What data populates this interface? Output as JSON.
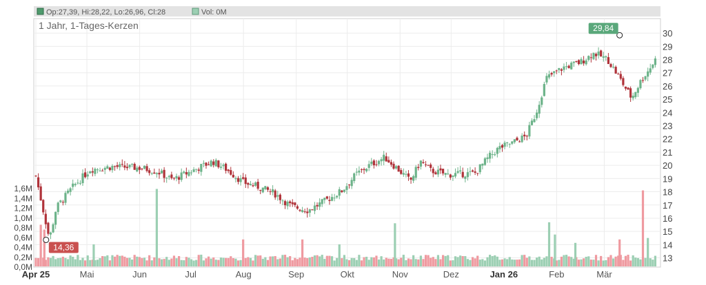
{
  "header": {
    "ohlc_text": "Op:27,39, Hi:28,22, Lo:26,96, Cl:28",
    "vol_text": "Vol: 0M"
  },
  "chart_data": {
    "type": "candlestick",
    "title": "1 Jahr, 1-Tages-Kerzen",
    "price_axis": {
      "min": 12.3,
      "max": 31.1,
      "ticks": [
        13,
        14,
        15,
        16,
        17,
        18,
        19,
        20,
        21,
        22,
        23,
        24,
        25,
        26,
        27,
        28,
        29,
        30
      ]
    },
    "volume_axis": {
      "min": 0,
      "max": 1.6,
      "ticks": [
        0,
        0.2,
        0.4,
        0.6,
        0.8,
        1.0,
        1.2,
        1.4,
        1.6
      ],
      "tick_labels": [
        "0,0M",
        "0,2M",
        "0,4M",
        "0,6M",
        "0,8M",
        "1,0M",
        "1,2M",
        "1,4M",
        "1,6M"
      ]
    },
    "x_labels": [
      {
        "label": "Apr 25",
        "bold": true,
        "day": 0
      },
      {
        "label": "Mai",
        "bold": false,
        "day": 30
      },
      {
        "label": "Jun",
        "bold": false,
        "day": 61
      },
      {
        "label": "Jul",
        "bold": false,
        "day": 91
      },
      {
        "label": "Aug",
        "bold": false,
        "day": 122
      },
      {
        "label": "Sep",
        "bold": false,
        "day": 153
      },
      {
        "label": "Okt",
        "bold": false,
        "day": 183
      },
      {
        "label": "Nov",
        "bold": false,
        "day": 214
      },
      {
        "label": "Dez",
        "bold": false,
        "day": 244
      },
      {
        "label": "Jan 26",
        "bold": true,
        "day": 275
      },
      {
        "label": "Feb",
        "bold": false,
        "day": 306
      },
      {
        "label": "Mär",
        "bold": false,
        "day": 334
      }
    ],
    "total_days": 365,
    "price_path": [
      [
        0,
        19.2
      ],
      [
        8,
        14.4
      ],
      [
        12,
        16.8
      ],
      [
        22,
        18.4
      ],
      [
        32,
        19.7
      ],
      [
        45,
        19.9
      ],
      [
        62,
        19.8
      ],
      [
        72,
        19.5
      ],
      [
        80,
        18.9
      ],
      [
        92,
        19.6
      ],
      [
        104,
        20.3
      ],
      [
        112,
        19.7
      ],
      [
        122,
        18.7
      ],
      [
        130,
        18.4
      ],
      [
        140,
        17.9
      ],
      [
        150,
        16.9
      ],
      [
        160,
        16.6
      ],
      [
        170,
        17.3
      ],
      [
        180,
        18.1
      ],
      [
        188,
        19.3
      ],
      [
        196,
        20.0
      ],
      [
        205,
        20.6
      ],
      [
        212,
        19.8
      ],
      [
        220,
        18.8
      ],
      [
        226,
        20.3
      ],
      [
        232,
        19.6
      ],
      [
        242,
        19.3
      ],
      [
        258,
        19.4
      ],
      [
        266,
        20.6
      ],
      [
        272,
        21.3
      ],
      [
        280,
        21.7
      ],
      [
        288,
        22.2
      ],
      [
        294,
        24.0
      ],
      [
        300,
        26.6
      ],
      [
        310,
        27.4
      ],
      [
        320,
        27.8
      ],
      [
        328,
        28.5
      ],
      [
        336,
        28.0
      ],
      [
        342,
        26.8
      ],
      [
        350,
        25.1
      ],
      [
        356,
        26.5
      ],
      [
        360,
        27.2
      ],
      [
        364,
        28.0
      ]
    ],
    "candles_up_color": "#6db38a",
    "candles_down_color": "#b0333a",
    "volume_up_color": "#9ccfb3",
    "volume_down_color": "#ef9aa0",
    "volume_spikes": [
      {
        "day": 3,
        "value": 0.85,
        "up": false
      },
      {
        "day": 5,
        "value": 0.75,
        "up": false
      },
      {
        "day": 34,
        "value": 0.45,
        "up": true
      },
      {
        "day": 71,
        "value": 1.58,
        "up": true
      },
      {
        "day": 122,
        "value": 0.55,
        "up": false
      },
      {
        "day": 157,
        "value": 0.55,
        "up": false
      },
      {
        "day": 178,
        "value": 0.45,
        "up": true
      },
      {
        "day": 211,
        "value": 0.88,
        "up": true
      },
      {
        "day": 302,
        "value": 0.9,
        "up": true
      },
      {
        "day": 305,
        "value": 0.65,
        "up": true
      },
      {
        "day": 317,
        "value": 0.48,
        "up": true
      },
      {
        "day": 343,
        "value": 0.55,
        "up": false
      },
      {
        "day": 357,
        "value": 1.55,
        "up": false
      },
      {
        "day": 360,
        "value": 0.58,
        "up": true
      }
    ],
    "annotations": [
      {
        "label": "29,84",
        "kind": "high",
        "day": 343,
        "price": 29.84,
        "color": "#5aa87b"
      },
      {
        "label": "14,36",
        "kind": "low",
        "day": 6,
        "price": 14.36,
        "color": "#c9504f"
      }
    ],
    "grid": true
  }
}
